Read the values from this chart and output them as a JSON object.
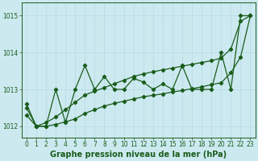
{
  "xlabel": "Graphe pression niveau de la mer (hPa)",
  "bg_color": "#cce9f0",
  "grid_color": "#b8dde8",
  "line_color": "#1a5c1a",
  "x": [
    0,
    1,
    2,
    3,
    4,
    5,
    6,
    7,
    8,
    9,
    10,
    11,
    12,
    13,
    14,
    15,
    16,
    17,
    18,
    19,
    20,
    21,
    22,
    23
  ],
  "line1": [
    1012.6,
    1012.0,
    1012.0,
    1013.0,
    1012.1,
    1013.0,
    1013.65,
    1013.0,
    1013.35,
    1013.0,
    1013.0,
    1013.3,
    1013.2,
    1013.0,
    1013.15,
    1013.0,
    1013.65,
    1013.0,
    1013.0,
    1013.0,
    1014.0,
    1013.0,
    1015.0,
    1015.0
  ],
  "line2": [
    1012.5,
    1012.0,
    1012.1,
    1012.25,
    1012.45,
    1012.65,
    1012.85,
    1012.95,
    1013.05,
    1013.15,
    1013.25,
    1013.35,
    1013.42,
    1013.48,
    1013.53,
    1013.58,
    1013.63,
    1013.68,
    1013.73,
    1013.78,
    1013.85,
    1014.1,
    1014.85,
    1015.0
  ],
  "line3": [
    1012.3,
    1012.0,
    1012.0,
    1012.05,
    1012.12,
    1012.2,
    1012.35,
    1012.45,
    1012.55,
    1012.62,
    1012.68,
    1012.74,
    1012.8,
    1012.84,
    1012.88,
    1012.93,
    1012.97,
    1013.02,
    1013.07,
    1013.13,
    1013.18,
    1013.45,
    1013.88,
    1015.0
  ],
  "ylim": [
    1011.7,
    1015.35
  ],
  "yticks": [
    1012,
    1013,
    1014,
    1015
  ],
  "xticks": [
    0,
    1,
    2,
    3,
    4,
    5,
    6,
    7,
    8,
    9,
    10,
    11,
    12,
    13,
    14,
    15,
    16,
    17,
    18,
    19,
    20,
    21,
    22,
    23
  ],
  "tick_fontsize": 5.5,
  "label_fontsize": 7.0
}
